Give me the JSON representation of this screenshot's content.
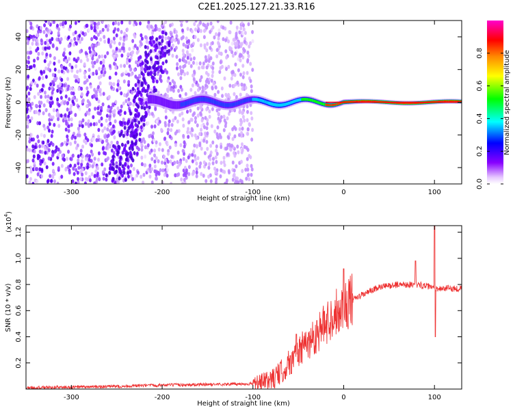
{
  "figure": {
    "title": "C2E1.2025.127.21.33.R16"
  },
  "chart_data": [
    {
      "type": "heatmap",
      "xlabel": "Height of straight line (km)",
      "ylabel": "Frequency (Hz)",
      "xlim": [
        -350,
        130
      ],
      "ylim": [
        -50,
        50
      ],
      "x_ticks": [
        -300,
        -200,
        -100,
        0,
        100
      ],
      "y_ticks": [
        -40,
        -20,
        0,
        20,
        40
      ],
      "colorbar": {
        "label": "Normalized spectral amplitude",
        "range": [
          0,
          1
        ],
        "ticks": [
          "0.0",
          "0.2",
          "0.4",
          "0.6",
          "0.8"
        ],
        "colormap": [
          "#ffffff",
          "#8800ff",
          "#0000ff",
          "#00ffff",
          "#00ff00",
          "#ffff00",
          "#ff8800",
          "#ff0000",
          "#ff00cc"
        ]
      },
      "features": {
        "diffuse_noise_extent_km": [
          -350,
          -100
        ],
        "diagonal_streak": {
          "from": [
            -200,
            40
          ],
          "to": [
            -250,
            -45
          ]
        },
        "central_ridge_frequency_hz": 0
      },
      "grid": false
    },
    {
      "type": "line",
      "xlabel": "Height of straight line (km)",
      "ylabel": "SNR (10 * v/v)",
      "y_scale_label": "(x10",
      "y_scale_exp": "4",
      "xlim": [
        -350,
        130
      ],
      "ylim": [
        0,
        1.25
      ],
      "x_ticks": [
        -300,
        -200,
        -100,
        0,
        100
      ],
      "y_ticks": [
        "0.2",
        "0.4",
        "0.6",
        "0.8",
        "1.0",
        "1.2"
      ],
      "color": "#ee3333",
      "series": [
        {
          "x": [
            -350,
            -300,
            -250,
            -200,
            -150,
            -100,
            -80,
            -70,
            -60,
            -50,
            -40,
            -30,
            -20,
            -10,
            0,
            10,
            20,
            30,
            40,
            50,
            60,
            70,
            80,
            90,
            100,
            110,
            120,
            130
          ],
          "y": [
            0.01,
            0.015,
            0.02,
            0.03,
            0.035,
            0.04,
            0.07,
            0.12,
            0.2,
            0.28,
            0.35,
            0.42,
            0.5,
            0.58,
            0.64,
            0.68,
            0.72,
            0.75,
            0.78,
            0.79,
            0.8,
            0.8,
            0.8,
            0.79,
            0.77,
            0.77,
            0.77,
            0.77
          ]
        }
      ],
      "spikes": [
        {
          "x": -52,
          "y": 0.42
        },
        {
          "x": 0,
          "y": 0.92
        },
        {
          "x": 79,
          "y": 0.98
        },
        {
          "x": 100,
          "y": 1.25
        },
        {
          "x": 101,
          "y": 0.4
        }
      ],
      "grid": false
    }
  ]
}
